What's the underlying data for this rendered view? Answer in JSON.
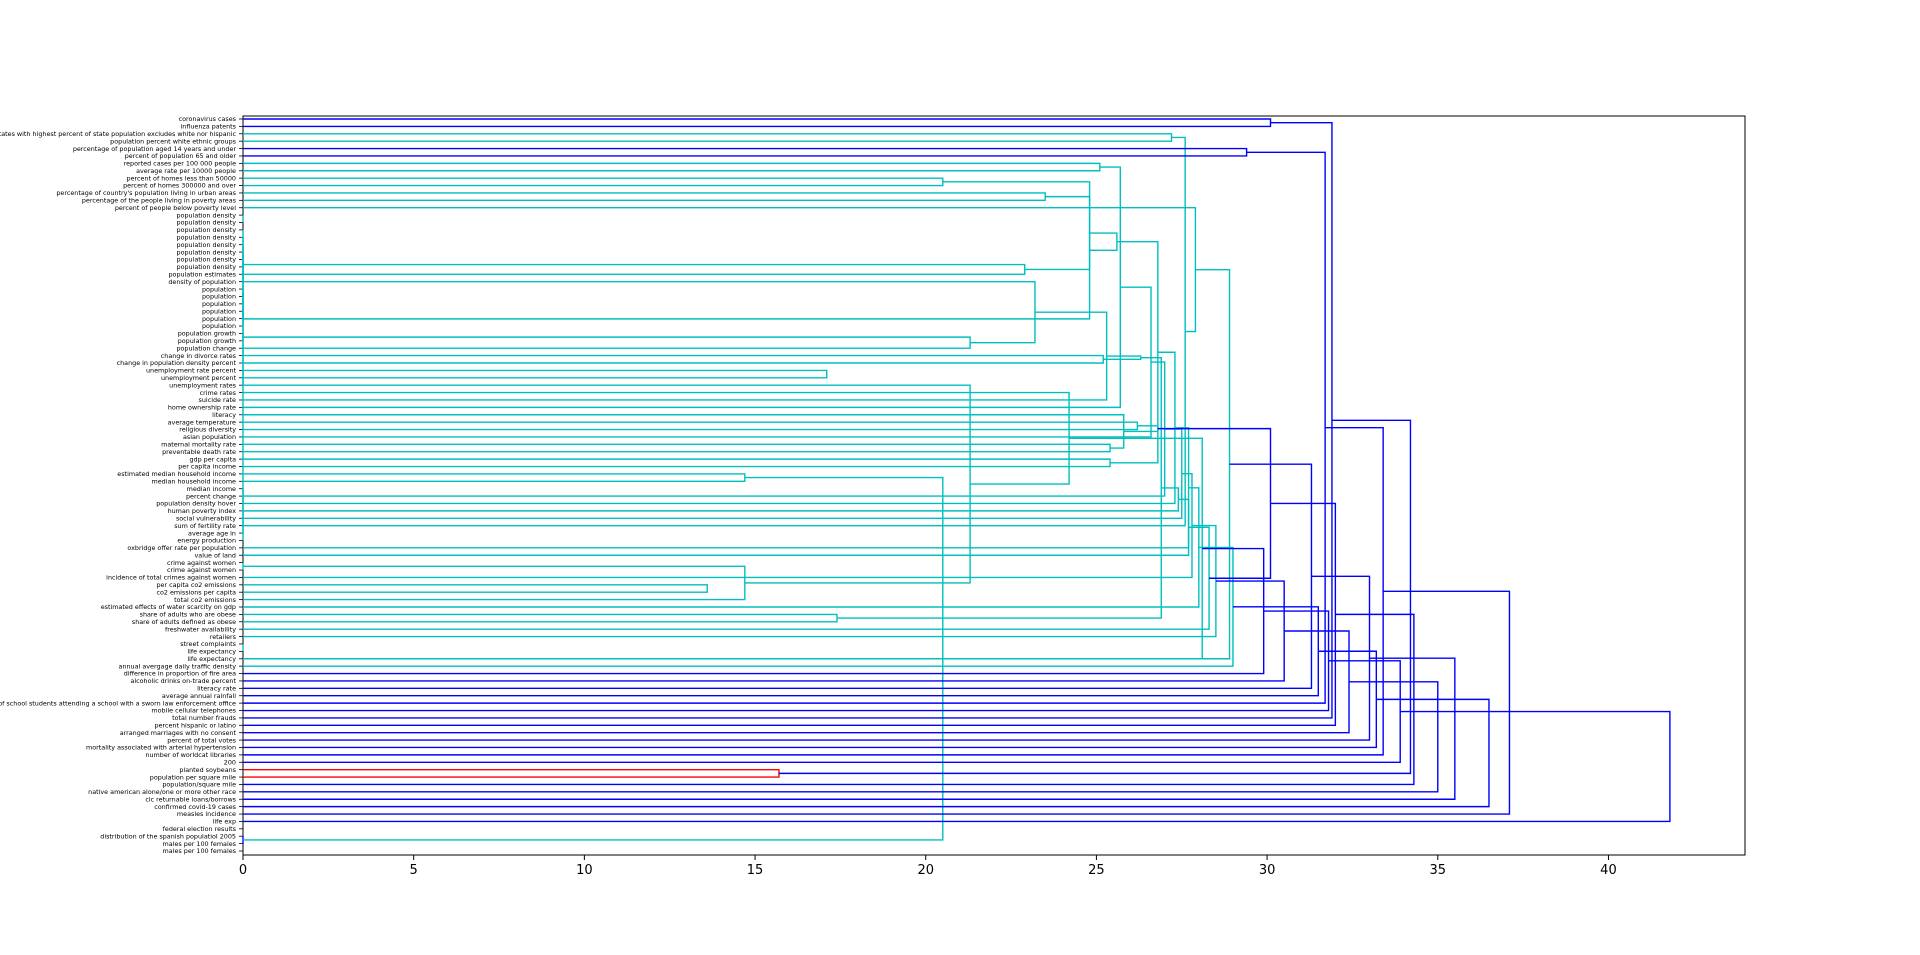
{
  "chart_data": {
    "type": "dendrogram",
    "orientation": "horizontal",
    "title": "",
    "xlabel": "",
    "ylabel": "",
    "xlim": [
      0,
      44
    ],
    "x_ticks": [
      0,
      5,
      10,
      15,
      20,
      25,
      30,
      35,
      40
    ],
    "colors": {
      "blue": "#0000ff",
      "cyan": "#00bfbf",
      "magenta": "#bf00bf",
      "olive": "#bfbf00",
      "red": "#ff0000"
    },
    "leaves": [
      "coronavirus cases",
      "influenza patents",
      "states with highest percent of state population excludes white nor hispanic",
      "population percent white ethnic groups",
      "percentage of population aged 14 years and under",
      "percent of population 65 and older",
      "reported cases per 100 000 people",
      "average rate per 10000 people",
      "percent of homes less than 50000",
      "percent of homes 300000 and over",
      "percentage of country's population living in urban areas",
      "percentage of the people living in poverty areas",
      "percent of people below poverty level",
      "population density",
      "population density",
      "population density",
      "population density",
      "population density",
      "population density",
      "population density",
      "population density",
      "population estimates",
      "density of population",
      "population",
      "population",
      "population",
      "population",
      "population",
      "population",
      "population growth",
      "population growth",
      "population change",
      "change in divorce rates",
      "change in population density percent",
      "unemployment rate percent",
      "unemployment percent",
      "unemployment rates",
      "crime rates",
      "suicide rate",
      "home ownership rate",
      "literacy",
      "average temperature",
      "religious diversity",
      "asian population",
      "maternal mortality rate",
      "preventable death rate",
      "gdp per capita",
      "per capita income",
      "estimated median household income",
      "median household income",
      "median income",
      "percent change",
      "population density hover",
      "human poverty index",
      "social vulnerability",
      "sum of fertility rate",
      "average age in",
      "energy production",
      "oxbridge offer rate per population",
      "value of land",
      "crime against women",
      "crime against women",
      "incidence of total crimes against women",
      "per capita co2 emissions",
      "co2 emissions per capita",
      "total co2 emissions",
      "estimated effects of water scarcity on gdp",
      "share of adults who are obese",
      "share of adults defined as obese",
      "freshwater availability",
      "retailers",
      "street complaints",
      "life expectancy",
      "life expectancy",
      "annual avergage daily traffic density",
      "difference in proportion of fire area",
      "alcoholic drinks on-trade percent",
      "literacy rate",
      "average annual rainfall",
      "percent of school students attending a school with a sworn law enforcement office",
      "mobile cellular telephones",
      "total number frauds",
      "percent hispanic or latino",
      "arranged marriages with no consent",
      "percent of total votes",
      "mortality associated with arterial hypertension",
      "number of worldcat libraries",
      "200",
      "planted soybeans",
      "population per square mile",
      "population/square mile",
      "native american alone/one or more other race",
      "clc returnable loans/borrows",
      "confirmed covid-19 cases",
      "measles incidence",
      "life exp",
      "federal election results",
      "distribution of the spanish populatiol 2005",
      "males per 100 females",
      "males per 100 females"
    ]
  }
}
